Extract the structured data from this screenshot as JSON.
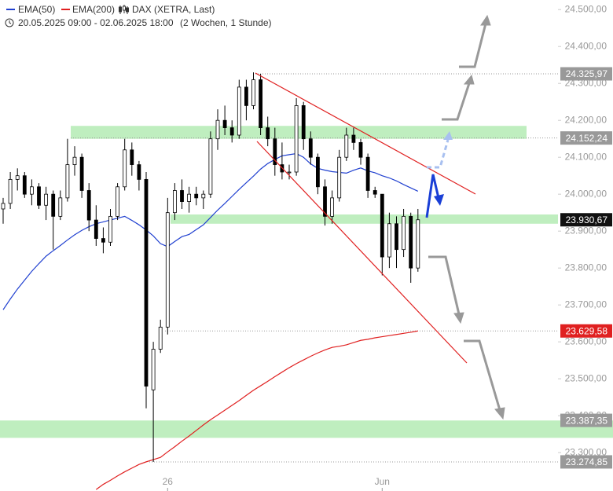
{
  "chart_data": {
    "type": "candlestick",
    "title": "DAX (XETRA, Last)",
    "subtitle": "20.05.2025 09:00 - 02.06.2025 18:00",
    "period": "(2 Wochen, 1 Stunde)",
    "ylim": [
      23196,
      24526
    ],
    "yticks": [
      {
        "value": 23300,
        "label": "23.300,00"
      },
      {
        "value": 23400,
        "label": "23.400,00"
      },
      {
        "value": 23500,
        "label": "23.500,00"
      },
      {
        "value": 23600,
        "label": "23.600,00"
      },
      {
        "value": 23700,
        "label": "23.700,00"
      },
      {
        "value": 23800,
        "label": "23.800,00"
      },
      {
        "value": 23900,
        "label": "23.900,00"
      },
      {
        "value": 24000,
        "label": "24.000,00"
      },
      {
        "value": 24100,
        "label": "24.100,00"
      },
      {
        "value": 24200,
        "label": "24.200,00"
      },
      {
        "value": 24300,
        "label": "24.300,00"
      },
      {
        "value": 24400,
        "label": "24.400,00"
      },
      {
        "value": 24500,
        "label": "24.500,00"
      }
    ],
    "xticks": [
      {
        "value": 23,
        "label": "26"
      },
      {
        "value": 53,
        "label": "Jun"
      }
    ],
    "up_color": "#ffffff",
    "down_color": "#000000",
    "open": [
      23960,
      23975,
      24040,
      24050,
      24000,
      24020,
      23970,
      24000,
      23940,
      23990,
      24080,
      24100,
      24010,
      23930,
      23880,
      23870,
      23940,
      24020,
      24120,
      24080,
      24040,
      23470,
      23580,
      23640,
      23950,
      24010,
      23980,
      24000,
      23990,
      24000,
      24150,
      24200,
      24180,
      24160,
      24290,
      24240,
      24310,
      24180,
      24150,
      24080,
      24060,
      24060,
      24240,
      24150,
      24100,
      24020,
      23940,
      23990,
      24100,
      24160,
      24140,
      24100,
      24010,
      24000,
      23830,
      23920,
      23850,
      23940,
      23800
    ],
    "high": [
      23990,
      24060,
      24070,
      24060,
      24040,
      24030,
      24020,
      24010,
      24010,
      24150,
      24130,
      24110,
      24030,
      23970,
      23910,
      23960,
      24030,
      24150,
      24140,
      24090,
      24060,
      23600,
      23660,
      23990,
      24030,
      24040,
      24020,
      24020,
      24010,
      24170,
      24230,
      24240,
      24200,
      24310,
      24310,
      24330,
      24325.97,
      24210,
      24180,
      24140,
      24080,
      24260,
      24250,
      24170,
      24110,
      24040,
      24010,
      24120,
      24180,
      24180,
      24150,
      24110,
      24020,
      24000,
      23950,
      23940,
      23960,
      23950,
      23960
    ],
    "low": [
      23920,
      23960,
      24010,
      23990,
      23970,
      23960,
      23930,
      23850,
      23930,
      23980,
      24050,
      23990,
      23900,
      23860,
      23840,
      23860,
      23930,
      24010,
      24050,
      24010,
      23420,
      23274.85,
      23570,
      23620,
      23930,
      23960,
      23950,
      23970,
      23960,
      23990,
      24120,
      24160,
      24140,
      24150,
      24200,
      24230,
      24160,
      24130,
      24050,
      24040,
      24040,
      24050,
      24120,
      24080,
      24000,
      23915,
      23920,
      23980,
      24090,
      24120,
      24080,
      23990,
      23990,
      23780,
      23800,
      23800,
      23830,
      23760,
      23790
    ],
    "close": [
      23975,
      24040,
      24050,
      24000,
      24020,
      23970,
      24000,
      23940,
      23990,
      24080,
      24100,
      24010,
      23930,
      23880,
      23870,
      23940,
      24020,
      24120,
      24080,
      24040,
      23480,
      23580,
      23640,
      23950,
      24010,
      23980,
      24000,
      23990,
      24000,
      24150,
      24200,
      24180,
      24160,
      24290,
      24240,
      24310,
      24180,
      24150,
      24080,
      24060,
      24060,
      24240,
      24150,
      24100,
      24020,
      23940,
      23990,
      24100,
      24160,
      24140,
      24100,
      24010,
      24000,
      23830,
      23920,
      23850,
      23940,
      23800,
      23930.67
    ],
    "series": [
      {
        "name": "EMA(50)",
        "color": "#2040d0",
        "values": [
          23687,
          23716,
          23743,
          23767,
          23791,
          23812,
          23832,
          23847,
          23861,
          23876,
          23890,
          23902,
          23912,
          23920,
          23925,
          23930,
          23935,
          23940,
          23929,
          23917,
          23903,
          23887,
          23866,
          23858,
          23872,
          23885,
          23891,
          23904,
          23917,
          23937,
          23957,
          23975,
          23994,
          24013,
          24031,
          24049,
          24068,
          24083,
          24094,
          24104,
          24107,
          24110,
          24100,
          24082,
          24070,
          24065,
          24061,
          24059,
          24057,
          24065,
          24071,
          24063,
          24058,
          24050,
          24044,
          24036,
          24026,
          24017,
          24008
        ]
      },
      {
        "name": "EMA(200)",
        "color": "#e02020",
        "values": [
          null,
          null,
          null,
          null,
          null,
          null,
          null,
          null,
          null,
          null,
          null,
          null,
          null,
          23200,
          23214,
          23225,
          23237,
          23248,
          23258,
          23268,
          23275,
          23281,
          23287,
          23302,
          23316,
          23331,
          23345,
          23360,
          23375,
          23389,
          23402,
          23415,
          23428,
          23441,
          23455,
          23469,
          23481,
          23493,
          23506,
          23518,
          23530,
          23541,
          23551,
          23561,
          23570,
          23578,
          23585,
          23588,
          23592,
          23598,
          23604,
          23607,
          23611,
          23614,
          23617,
          23620,
          23623,
          23626,
          23629.58
        ]
      }
    ],
    "zones": [
      [
        24150,
        24185
      ],
      [
        23920,
        23945
      ],
      [
        23340,
        23387
      ]
    ],
    "zone_color": "#bfeebf",
    "levels": [
      {
        "value": 24325.97,
        "label": "24.325,97",
        "color": "#999999"
      },
      {
        "value": 24152.24,
        "label": "24.152,24",
        "color": "#999999"
      },
      {
        "value": 23930.67,
        "label": "23.930,67",
        "color": "#111111"
      },
      {
        "value": 23629.58,
        "label": "23.629,58",
        "color": "#e02020"
      },
      {
        "value": 23387.35,
        "label": "23.387,35",
        "color": "#999999"
      },
      {
        "value": 23274.85,
        "label": "23.274,85",
        "color": "#999999"
      }
    ]
  }
}
